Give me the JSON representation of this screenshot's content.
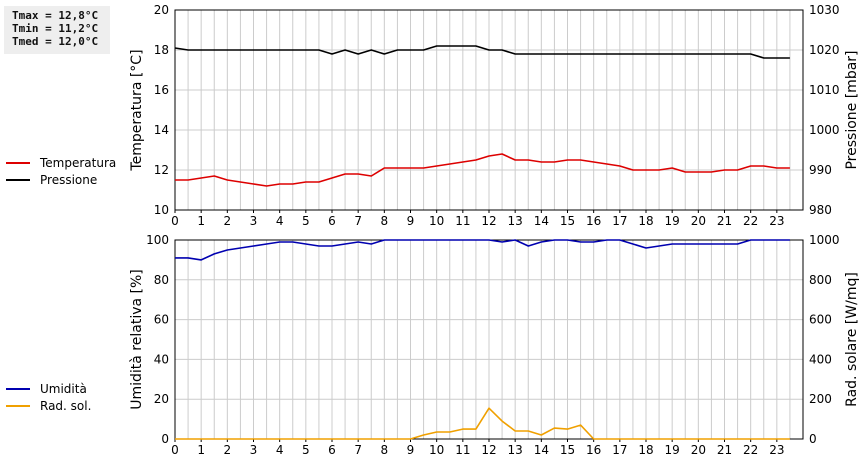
{
  "stats": {
    "tmax": "Tmax = 12,8°C",
    "tmin": "Tmin = 11,2°C",
    "tmed": "Tmed = 12,0°C"
  },
  "colors": {
    "temperature": "#dd0000",
    "pressure": "#000000",
    "humidity": "#0000b0",
    "radiation": "#f0a000",
    "grid": "#cccccc"
  },
  "chart_data": [
    {
      "type": "line",
      "legend": [
        "Temperatura",
        "Pressione"
      ],
      "xlim": [
        0,
        24
      ],
      "x_ticks": [
        "0",
        "1",
        "2",
        "3",
        "4",
        "5",
        "6",
        "7",
        "8",
        "9",
        "10",
        "11",
        "12",
        "13",
        "14",
        "15",
        "16",
        "17",
        "18",
        "19",
        "20",
        "21",
        "22",
        "23"
      ],
      "ylabel_left": "Temperatura [°C]",
      "ylabel_right": "Pressione [mbar]",
      "ylim_left": [
        10,
        20
      ],
      "ylim_right": [
        980,
        1030
      ],
      "y_ticks_left": [
        "10",
        "12",
        "14",
        "16",
        "18",
        "20"
      ],
      "y_ticks_right": [
        "980",
        "990",
        "1000",
        "1010",
        "1020",
        "1030"
      ],
      "grid": true,
      "series": [
        {
          "name": "Temperatura",
          "axis": "left",
          "x": [
            0,
            0.5,
            1,
            1.5,
            2,
            2.5,
            3,
            3.5,
            4,
            4.5,
            5,
            5.5,
            6,
            6.5,
            7,
            7.5,
            8,
            8.5,
            9,
            9.5,
            10,
            10.5,
            11,
            11.5,
            12,
            12.5,
            13,
            13.5,
            14,
            14.5,
            15,
            15.5,
            16,
            16.5,
            17,
            17.5,
            18,
            18.5,
            19,
            19.5,
            20,
            20.5,
            21,
            21.5,
            22,
            22.5,
            23,
            23.5
          ],
          "y": [
            11.5,
            11.5,
            11.6,
            11.7,
            11.5,
            11.4,
            11.3,
            11.2,
            11.3,
            11.3,
            11.4,
            11.4,
            11.6,
            11.8,
            11.8,
            11.7,
            12.1,
            12.1,
            12.1,
            12.1,
            12.2,
            12.3,
            12.4,
            12.5,
            12.7,
            12.8,
            12.5,
            12.5,
            12.4,
            12.4,
            12.5,
            12.5,
            12.4,
            12.3,
            12.2,
            12.0,
            12.0,
            12.0,
            12.1,
            11.9,
            11.9,
            11.9,
            12.0,
            12.0,
            12.2,
            12.2,
            12.1,
            12.1
          ]
        },
        {
          "name": "Pressione",
          "axis": "right",
          "x": [
            0,
            0.5,
            1,
            1.5,
            2,
            2.5,
            3,
            3.5,
            4,
            4.5,
            5,
            5.5,
            6,
            6.5,
            7,
            7.5,
            8,
            8.5,
            9,
            9.5,
            10,
            10.5,
            11,
            11.5,
            12,
            12.5,
            13,
            13.5,
            14,
            14.5,
            15,
            15.5,
            16,
            16.5,
            17,
            17.5,
            18,
            18.5,
            19,
            19.5,
            20,
            20.5,
            21,
            21.5,
            22,
            22.5,
            23,
            23.5
          ],
          "y": [
            1020.5,
            1020,
            1020,
            1020,
            1020,
            1020,
            1020,
            1020,
            1020,
            1020,
            1020,
            1020,
            1019,
            1020,
            1019,
            1020,
            1019,
            1020,
            1020,
            1020,
            1021,
            1021,
            1021,
            1021,
            1020,
            1020,
            1019,
            1019,
            1019,
            1019,
            1019,
            1019,
            1019,
            1019,
            1019,
            1019,
            1019,
            1019,
            1019,
            1019,
            1019,
            1019,
            1019,
            1019,
            1019,
            1018,
            1018,
            1018
          ]
        }
      ]
    },
    {
      "type": "line",
      "legend": [
        "Umidità",
        "Rad. sol."
      ],
      "xlim": [
        0,
        24
      ],
      "x_ticks": [
        "0",
        "1",
        "2",
        "3",
        "4",
        "5",
        "6",
        "7",
        "8",
        "9",
        "10",
        "11",
        "12",
        "13",
        "14",
        "15",
        "16",
        "17",
        "18",
        "19",
        "20",
        "21",
        "22",
        "23"
      ],
      "ylabel_left": "Umidità relativa [%]",
      "ylabel_right": "Rad. solare [W/mq]",
      "ylim_left": [
        0,
        100
      ],
      "ylim_right": [
        0,
        1000
      ],
      "y_ticks_left": [
        "0",
        "20",
        "40",
        "60",
        "80",
        "100"
      ],
      "y_ticks_right": [
        "0",
        "200",
        "400",
        "600",
        "800",
        "1000"
      ],
      "grid": true,
      "series": [
        {
          "name": "Umidità",
          "axis": "left",
          "x": [
            0,
            0.5,
            1,
            1.5,
            2,
            2.5,
            3,
            3.5,
            4,
            4.5,
            5,
            5.5,
            6,
            6.5,
            7,
            7.5,
            8,
            8.5,
            9,
            9.5,
            10,
            10.5,
            11,
            11.5,
            12,
            12.5,
            13,
            13.5,
            14,
            14.5,
            15,
            15.5,
            16,
            16.5,
            17,
            17.5,
            18,
            18.5,
            19,
            19.5,
            20,
            20.5,
            21,
            21.5,
            22,
            22.5,
            23,
            23.5
          ],
          "y": [
            91,
            91,
            90,
            93,
            95,
            96,
            97,
            98,
            99,
            99,
            98,
            97,
            97,
            98,
            99,
            98,
            100,
            100,
            100,
            100,
            100,
            100,
            100,
            100,
            100,
            99,
            100,
            97,
            99,
            100,
            100,
            99,
            99,
            100,
            100,
            98,
            96,
            97,
            98,
            98,
            98,
            98,
            98,
            98,
            100,
            100,
            100,
            100
          ]
        },
        {
          "name": "Rad. sol.",
          "axis": "right",
          "x": [
            0,
            0.5,
            1,
            1.5,
            2,
            2.5,
            3,
            3.5,
            4,
            4.5,
            5,
            5.5,
            6,
            6.5,
            7,
            7.5,
            8,
            8.5,
            9,
            9.5,
            10,
            10.5,
            11,
            11.5,
            12,
            12.5,
            13,
            13.5,
            14,
            14.5,
            15,
            15.5,
            16,
            16.5,
            17,
            17.5,
            18,
            18.5,
            19,
            19.5,
            20,
            20.5,
            21,
            21.5,
            22,
            22.5,
            23,
            23.5
          ],
          "y": [
            0,
            0,
            0,
            0,
            0,
            0,
            0,
            0,
            0,
            0,
            0,
            0,
            0,
            0,
            0,
            0,
            0,
            0,
            0,
            20,
            35,
            35,
            50,
            50,
            155,
            90,
            40,
            40,
            20,
            55,
            50,
            70,
            0,
            0,
            0,
            0,
            0,
            0,
            0,
            0,
            0,
            0,
            0,
            0,
            0,
            0,
            0,
            0
          ]
        }
      ]
    }
  ]
}
